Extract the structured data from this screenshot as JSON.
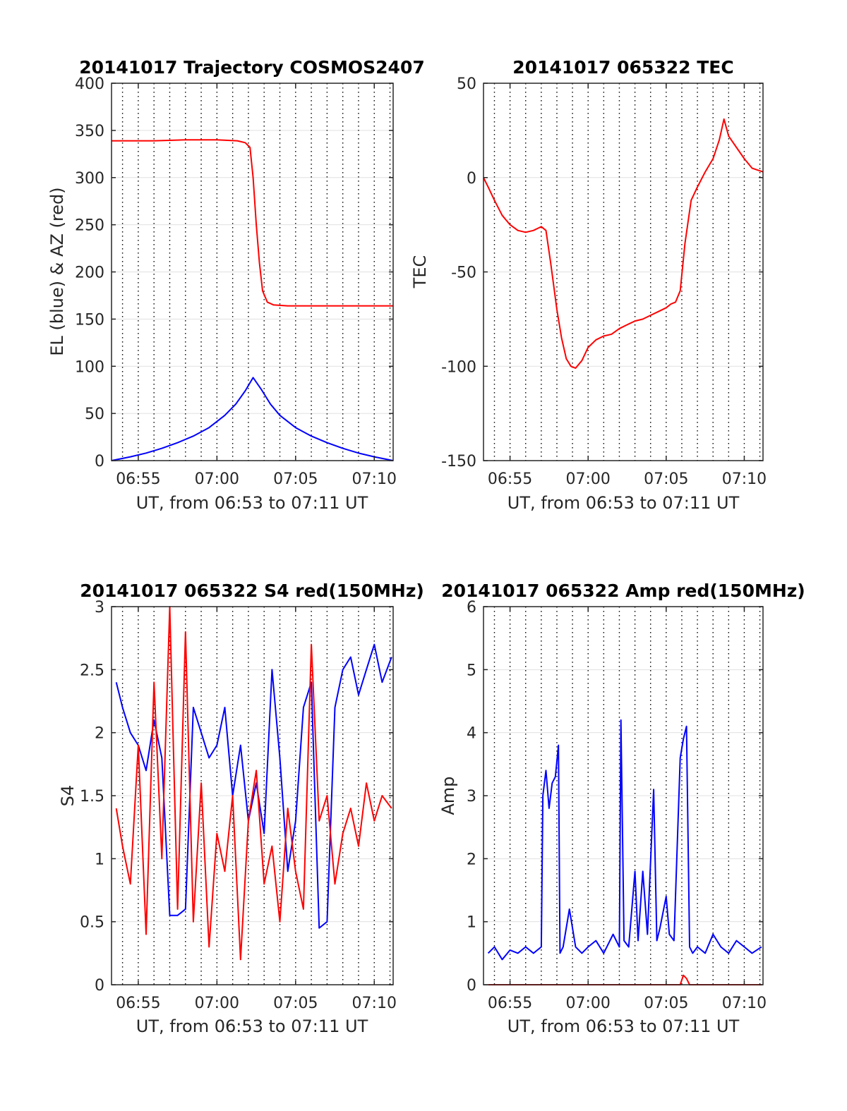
{
  "colors": {
    "red": "#ff0000",
    "blue": "#0000ff",
    "axis": "#262626",
    "grid": "#e0e0e0",
    "vgrid": "#000000"
  },
  "chart_data": [
    {
      "id": "trajectory",
      "type": "line",
      "title": "20141017 Trajectory COSMOS2407",
      "xlabel": "UT, from 06:53 to 07:11 UT",
      "ylabel": "EL (blue) & AZ (red)",
      "xlim_minutes": [
        413.3,
        431.2
      ],
      "ylim": [
        0,
        400
      ],
      "yticks": [
        0,
        50,
        100,
        150,
        200,
        250,
        300,
        350,
        400
      ],
      "xticks": [
        {
          "value": 415,
          "label": "06:55"
        },
        {
          "value": 420,
          "label": "07:00"
        },
        {
          "value": 425,
          "label": "07:05"
        },
        {
          "value": 430,
          "label": "07:10"
        }
      ],
      "grid": "dotted minute lines, light horizontal lines",
      "series": [
        {
          "color": "red",
          "x": [
            413.3,
            416.0,
            418.0,
            420.0,
            421.3,
            421.8,
            422.1,
            422.3,
            422.5,
            422.7,
            422.9,
            423.2,
            423.6,
            424.5,
            426.0,
            428.0,
            431.2
          ],
          "y": [
            339,
            339,
            340,
            340,
            339,
            337,
            332,
            300,
            250,
            210,
            180,
            168,
            165,
            164,
            164,
            164,
            164
          ]
        },
        {
          "color": "blue",
          "x": [
            413.3,
            414.5,
            415.5,
            416.5,
            417.5,
            418.5,
            419.5,
            420.5,
            421.2,
            421.8,
            422.3,
            422.8,
            423.4,
            424.0,
            425.0,
            426.0,
            427.0,
            428.0,
            429.0,
            430.0,
            431.2
          ],
          "y": [
            0,
            4,
            8,
            13,
            19,
            26,
            35,
            48,
            60,
            74,
            88,
            76,
            60,
            48,
            35,
            26,
            19,
            13,
            8,
            4,
            0
          ]
        }
      ]
    },
    {
      "id": "tec",
      "type": "line",
      "title": "20141017 065322 TEC",
      "xlabel": "UT, from 06:53 to 07:11 UT",
      "ylabel": "TEC",
      "xlim_minutes": [
        413.3,
        431.2
      ],
      "ylim": [
        -150,
        50
      ],
      "yticks": [
        -150,
        -100,
        -50,
        0,
        50
      ],
      "xticks": [
        {
          "value": 415,
          "label": "06:55"
        },
        {
          "value": 420,
          "label": "07:00"
        },
        {
          "value": 425,
          "label": "07:05"
        },
        {
          "value": 430,
          "label": "07:10"
        }
      ],
      "grid": "dotted minute lines, light horizontal lines",
      "series": [
        {
          "color": "red",
          "x": [
            413.3,
            413.6,
            414.0,
            414.5,
            415.0,
            415.5,
            416.0,
            416.5,
            417.0,
            417.3,
            417.6,
            418.0,
            418.3,
            418.6,
            418.9,
            419.2,
            419.6,
            420.0,
            420.5,
            421.0,
            421.5,
            422.0,
            422.5,
            423.0,
            423.5,
            424.0,
            424.5,
            425.0,
            425.3,
            425.6,
            425.9,
            426.2,
            426.6,
            427.0,
            427.5,
            428.0,
            428.4,
            428.7,
            429.0,
            429.5,
            430.0,
            430.5,
            431.2
          ],
          "y": [
            0,
            -5,
            -12,
            -20,
            -25,
            -28,
            -29,
            -28,
            -26,
            -28,
            -45,
            -70,
            -85,
            -96,
            -100,
            -101,
            -97,
            -90,
            -86,
            -84,
            -83,
            -80,
            -78,
            -76,
            -75,
            -73,
            -71,
            -69,
            -67,
            -66,
            -60,
            -35,
            -12,
            -5,
            3,
            10,
            20,
            31,
            22,
            16,
            10,
            5,
            3
          ]
        }
      ]
    },
    {
      "id": "s4",
      "type": "line",
      "title": "20141017 065322 S4 red(150MHz)",
      "xlabel": "UT, from 06:53 to 07:11 UT",
      "ylabel": "S4",
      "xlim_minutes": [
        413.3,
        431.2
      ],
      "ylim": [
        0,
        3
      ],
      "yticks": [
        0,
        0.5,
        1,
        1.5,
        2,
        2.5,
        3
      ],
      "ytick_labels": [
        "0",
        "0.5",
        "1",
        "1.5",
        "2",
        "2.5",
        "3"
      ],
      "xticks": [
        {
          "value": 415,
          "label": "06:55"
        },
        {
          "value": 420,
          "label": "07:00"
        },
        {
          "value": 425,
          "label": "07:05"
        },
        {
          "value": 430,
          "label": "07:10"
        }
      ],
      "grid": "dotted minute lines, light horizontal lines",
      "series": [
        {
          "color": "blue",
          "x": [
            413.6,
            414.0,
            414.5,
            415.0,
            415.5,
            416.0,
            416.5,
            417.0,
            417.5,
            418.0,
            418.5,
            419.0,
            419.5,
            420.0,
            420.5,
            421.0,
            421.5,
            422.0,
            422.5,
            423.0,
            423.5,
            424.0,
            424.5,
            425.0,
            425.5,
            426.0,
            426.5,
            427.0,
            427.5,
            428.0,
            428.5,
            429.0,
            429.5,
            430.0,
            430.5,
            431.1
          ],
          "y": [
            2.4,
            2.2,
            2.0,
            1.9,
            1.7,
            2.1,
            1.8,
            0.55,
            0.55,
            0.6,
            2.2,
            2.0,
            1.8,
            1.9,
            2.2,
            1.5,
            1.9,
            1.3,
            1.6,
            1.2,
            2.5,
            1.8,
            0.9,
            1.3,
            2.2,
            2.4,
            0.45,
            0.5,
            2.2,
            2.5,
            2.6,
            2.3,
            2.5,
            2.7,
            2.4,
            2.6
          ]
        },
        {
          "color": "red",
          "x": [
            413.6,
            414.0,
            414.5,
            415.0,
            415.5,
            416.0,
            416.5,
            417.0,
            417.5,
            418.0,
            418.5,
            419.0,
            419.5,
            420.0,
            420.5,
            421.0,
            421.5,
            422.0,
            422.5,
            423.0,
            423.5,
            424.0,
            424.5,
            425.0,
            425.5,
            426.0,
            426.5,
            427.0,
            427.5,
            428.0,
            428.5,
            429.0,
            429.5,
            430.0,
            430.5,
            431.1
          ],
          "y": [
            1.4,
            1.1,
            0.8,
            1.9,
            0.4,
            2.4,
            1.0,
            3.0,
            0.6,
            2.8,
            0.5,
            1.6,
            0.3,
            1.2,
            0.9,
            1.5,
            0.2,
            1.3,
            1.7,
            0.8,
            1.1,
            0.5,
            1.4,
            0.9,
            0.6,
            2.7,
            1.3,
            1.5,
            0.8,
            1.2,
            1.4,
            1.1,
            1.6,
            1.3,
            1.5,
            1.4
          ]
        }
      ]
    },
    {
      "id": "amp",
      "type": "line",
      "title": "20141017 065322 Amp red(150MHz)",
      "xlabel": "UT, from 06:53 to 07:11 UT",
      "ylabel": "Amp",
      "xlim_minutes": [
        413.3,
        431.2
      ],
      "ylim": [
        0,
        6
      ],
      "yticks": [
        0,
        1,
        2,
        3,
        4,
        5,
        6
      ],
      "xticks": [
        {
          "value": 415,
          "label": "06:55"
        },
        {
          "value": 420,
          "label": "07:00"
        },
        {
          "value": 425,
          "label": "07:05"
        },
        {
          "value": 430,
          "label": "07:10"
        }
      ],
      "grid": "dotted minute lines, light horizontal lines",
      "series": [
        {
          "color": "blue",
          "x": [
            413.6,
            414.0,
            414.5,
            415.0,
            415.5,
            416.0,
            416.5,
            417.0,
            417.1,
            417.3,
            417.5,
            417.7,
            417.9,
            418.1,
            418.2,
            418.4,
            418.8,
            419.2,
            419.6,
            420.0,
            420.5,
            421.0,
            421.6,
            422.0,
            422.1,
            422.3,
            422.6,
            423.0,
            423.2,
            423.5,
            423.8,
            424.2,
            424.4,
            424.6,
            425.0,
            425.2,
            425.5,
            425.9,
            426.1,
            426.3,
            426.5,
            426.7,
            427.0,
            427.5,
            428.0,
            428.5,
            429.0,
            429.5,
            430.0,
            430.5,
            431.1
          ],
          "y": [
            0.5,
            0.6,
            0.4,
            0.55,
            0.5,
            0.6,
            0.5,
            0.6,
            3.0,
            3.4,
            2.8,
            3.2,
            3.3,
            3.8,
            0.5,
            0.6,
            1.2,
            0.6,
            0.5,
            0.6,
            0.7,
            0.5,
            0.8,
            0.6,
            4.2,
            0.7,
            0.6,
            1.8,
            0.7,
            1.8,
            0.8,
            3.1,
            0.7,
            0.9,
            1.4,
            0.8,
            0.7,
            3.6,
            3.9,
            4.1,
            0.6,
            0.5,
            0.6,
            0.5,
            0.8,
            0.6,
            0.5,
            0.7,
            0.6,
            0.5,
            0.6
          ]
        },
        {
          "color": "red",
          "x": [
            413.6,
            420.0,
            425.9,
            426.1,
            426.3,
            426.5,
            431.1
          ],
          "y": [
            0.0,
            0.0,
            0.0,
            0.15,
            0.1,
            0.0,
            0.0
          ]
        }
      ]
    }
  ]
}
